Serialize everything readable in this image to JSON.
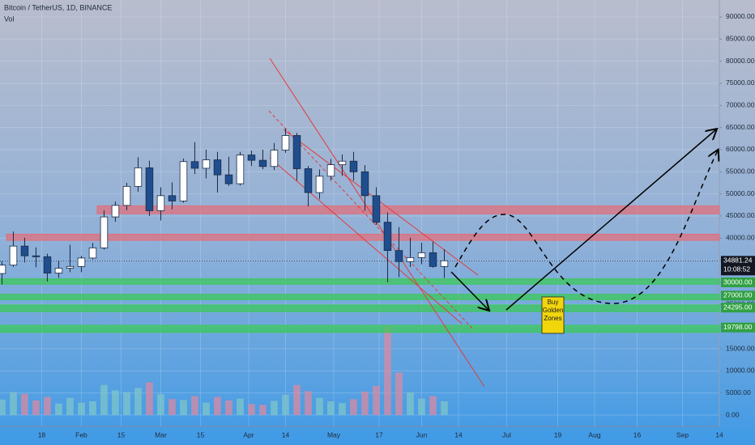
{
  "chart_data": {
    "type": "candlestick",
    "title": "Bitcoin / TetherUS, 1D, BINANCE",
    "subtitle": "Vol",
    "x": [
      3,
      7,
      11,
      15,
      19,
      23,
      27,
      31,
      35,
      39,
      43,
      47,
      51,
      55,
      59,
      63,
      67,
      71,
      75,
      79,
      83,
      87,
      91,
      95,
      99,
      103,
      107,
      111,
      115,
      119,
      123,
      127,
      131,
      135,
      139,
      143,
      147,
      151,
      155,
      159
    ],
    "open": [
      32000,
      33900,
      38200,
      36000,
      35800,
      32100,
      33200,
      33600,
      35500,
      37800,
      44800,
      47400,
      51700,
      55900,
      46200,
      49600,
      48400,
      57300,
      55800,
      57700,
      54300,
      52300,
      58800,
      57600,
      56200,
      59900,
      63200,
      55700,
      50300,
      54000,
      56600,
      57400,
      55000,
      49600,
      43600,
      37200,
      34700,
      35600,
      36700,
      33600
    ],
    "high": [
      34800,
      41500,
      40100,
      37900,
      36500,
      34900,
      38500,
      36000,
      38900,
      46300,
      48300,
      52500,
      58300,
      57500,
      51500,
      52600,
      58000,
      61700,
      60000,
      59500,
      58400,
      59500,
      59800,
      60000,
      61500,
      64800,
      63800,
      56300,
      55500,
      57900,
      58900,
      59500,
      56500,
      51500,
      45800,
      42500,
      40100,
      39000,
      39200,
      37500
    ],
    "low": [
      29500,
      33500,
      34500,
      33400,
      30200,
      31000,
      32300,
      32300,
      35200,
      37400,
      43700,
      46300,
      50500,
      45000,
      44000,
      46500,
      48000,
      54500,
      53500,
      50300,
      51800,
      51900,
      56300,
      55600,
      55400,
      59300,
      53000,
      47200,
      48800,
      53000,
      54100,
      53000,
      46200,
      43000,
      30000,
      31200,
      33500,
      34100,
      33300,
      31000
    ],
    "close": [
      33900,
      38200,
      36000,
      35800,
      32100,
      33200,
      33600,
      35500,
      37800,
      44800,
      47400,
      51700,
      55900,
      46200,
      49600,
      48400,
      57300,
      55800,
      57700,
      54300,
      52300,
      58800,
      57600,
      56200,
      59900,
      63200,
      55700,
      50300,
      54000,
      56600,
      57400,
      55000,
      49600,
      43600,
      37200,
      34700,
      35600,
      36700,
      33600,
      34881.24
    ],
    "volume": [
      3500,
      5200,
      4800,
      3300,
      4100,
      2600,
      3900,
      2800,
      3100,
      6800,
      5600,
      5200,
      6100,
      7400,
      4700,
      3600,
      3400,
      4300,
      2800,
      4100,
      3300,
      3700,
      2500,
      2300,
      3200,
      4600,
      6800,
      5400,
      3900,
      3100,
      2700,
      3600,
      5300,
      6600,
      20000,
      9600,
      5100,
      3700,
      4300,
      3100
    ],
    "up_color": "#ffffff",
    "down_color": "#1f4e8f",
    "volume_up_color": "#7fc6c9",
    "volume_down_color": "#d98aa3",
    "ylim": [
      -2560,
      93840
    ],
    "yticks": [
      {
        "value": 0,
        "label": "0.00"
      },
      {
        "value": 5000,
        "label": "5000.00"
      },
      {
        "value": 10000,
        "label": "10000.00"
      },
      {
        "value": 15000,
        "label": "15000.00"
      },
      {
        "value": 20000,
        "label": "20000.00"
      },
      {
        "value": 25000,
        "label": "25000.00"
      },
      {
        "value": 30000,
        "label": "30000.00"
      },
      {
        "value": 35000,
        "label": "35000.00"
      },
      {
        "value": 40000,
        "label": "40000.00"
      },
      {
        "value": 45000,
        "label": "45000.00"
      },
      {
        "value": 50000,
        "label": "50000.00"
      },
      {
        "value": 55000,
        "label": "55000.00"
      },
      {
        "value": 60000,
        "label": "60000.00"
      },
      {
        "value": 65000,
        "label": "65000.00"
      },
      {
        "value": 70000,
        "label": "70000.00"
      },
      {
        "value": 75000,
        "label": "75000.00"
      },
      {
        "value": 80000,
        "label": "80000.00"
      },
      {
        "value": 85000,
        "label": "85000.00"
      },
      {
        "value": 90000,
        "label": "90000.00"
      }
    ],
    "xlim": [
      2.3,
      256
    ],
    "xticks": [
      {
        "value": 17,
        "label": "18"
      },
      {
        "value": 31,
        "label": "Feb"
      },
      {
        "value": 45,
        "label": "15"
      },
      {
        "value": 59,
        "label": "Mar"
      },
      {
        "value": 73,
        "label": "15"
      },
      {
        "value": 90,
        "label": "Apr"
      },
      {
        "value": 103,
        "label": "14"
      },
      {
        "value": 120,
        "label": "May"
      },
      {
        "value": 136,
        "label": "17"
      },
      {
        "value": 151,
        "label": "Jun"
      },
      {
        "value": 164,
        "label": "14"
      },
      {
        "value": 181,
        "label": "Jul"
      },
      {
        "value": 199,
        "label": "19"
      },
      {
        "value": 212,
        "label": "Aug"
      },
      {
        "value": 227,
        "label": "16"
      },
      {
        "value": 243,
        "label": "Sep"
      },
      {
        "value": 256,
        "label": "14"
      }
    ],
    "grid": true,
    "resistance_zones": [
      {
        "bottom": 45500,
        "top": 47300
      },
      {
        "bottom": 39500,
        "top": 40900
      }
    ],
    "support_zones": [
      {
        "bottom": 29600,
        "top": 30800
      },
      {
        "bottom": 26100,
        "top": 27300
      },
      {
        "bottom": 23400,
        "top": 24900
      },
      {
        "bottom": 18700,
        "top": 20300
      }
    ],
    "zone_color_resistance": "#e0707c",
    "zone_color_support": "#3cc85a",
    "price_labels": [
      {
        "value": 30000,
        "label": "30000.00"
      },
      {
        "value": 27000,
        "label": "27000.00"
      },
      {
        "value": 24295,
        "label": "24295.00"
      },
      {
        "value": 19798,
        "label": "19798.00"
      }
    ],
    "last_price": {
      "value": 34881.24,
      "label": "34881.24"
    },
    "countdown": "10:08:52",
    "annotation": "Buy Golden Zones"
  }
}
